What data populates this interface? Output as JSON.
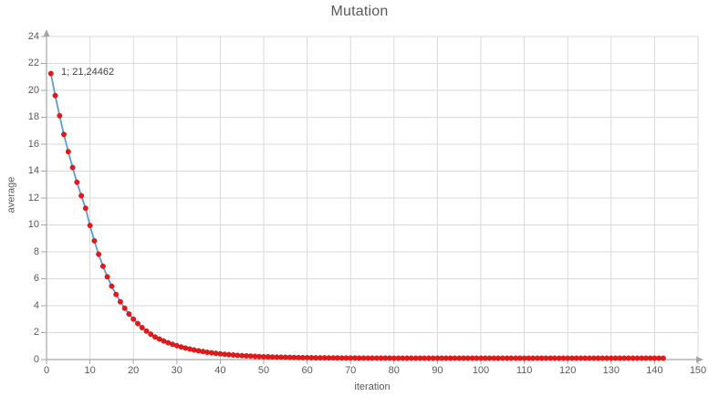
{
  "title": {
    "text": "Mutation"
  },
  "style": {
    "background": "#ffffff",
    "grid_color": "#d9d9d9",
    "axis_color": "#a6a6a6",
    "tick_label_color": "#595959",
    "title_color": "#595959",
    "data_label_color": "#404040"
  },
  "chart_data": {
    "type": "line",
    "title": "Mutation",
    "xlabel": "iteration",
    "ylabel": "average",
    "xlim": [
      0,
      150
    ],
    "ylim": [
      0,
      24
    ],
    "x_tick_step": 10,
    "y_tick_step": 2,
    "x_ticks": [
      0,
      10,
      20,
      30,
      40,
      50,
      60,
      70,
      80,
      90,
      100,
      110,
      120,
      130,
      140,
      150
    ],
    "y_ticks": [
      0,
      2,
      4,
      6,
      8,
      10,
      12,
      14,
      16,
      18,
      20,
      22,
      24
    ],
    "grid": true,
    "legend": "none",
    "line_color": "#5b9bd5",
    "marker_color": "#ed1515",
    "marker_edge_color": "#b01010",
    "annotations": [
      {
        "x": 1,
        "y": 21.24462,
        "text": "1; 21,24462"
      }
    ],
    "series": [
      {
        "name": "average",
        "x": [
          1,
          2,
          3,
          4,
          5,
          6,
          7,
          8,
          9,
          10,
          11,
          12,
          13,
          14,
          15,
          16,
          17,
          18,
          19,
          20,
          21,
          22,
          23,
          24,
          25,
          26,
          27,
          28,
          29,
          30,
          31,
          32,
          33,
          34,
          35,
          36,
          37,
          38,
          39,
          40,
          41,
          42,
          43,
          44,
          45,
          46,
          47,
          48,
          49,
          50,
          51,
          52,
          53,
          54,
          55,
          56,
          57,
          58,
          59,
          60,
          61,
          62,
          63,
          64,
          65,
          66,
          67,
          68,
          69,
          70,
          71,
          72,
          73,
          74,
          75,
          76,
          77,
          78,
          79,
          80,
          81,
          82,
          83,
          84,
          85,
          86,
          87,
          88,
          89,
          90,
          91,
          92,
          93,
          94,
          95,
          96,
          97,
          98,
          99,
          100,
          101,
          102,
          103,
          104,
          105,
          106,
          107,
          108,
          109,
          110,
          111,
          112,
          113,
          114,
          115,
          116,
          117,
          118,
          119,
          120,
          121,
          122,
          123,
          124,
          125,
          126,
          127,
          128,
          129,
          130,
          131,
          132,
          133,
          134,
          135,
          136,
          137,
          138,
          139,
          140,
          141,
          142
        ],
        "values": [
          21.24462,
          19.6164,
          18.1137,
          16.7266,
          15.4464,
          14.2647,
          13.174,
          12.1673,
          11.2381,
          9.9572,
          8.8236,
          7.8204,
          6.9325,
          6.1468,
          5.4514,
          4.836,
          4.2914,
          3.8094,
          3.3828,
          3.0053,
          2.6712,
          2.3755,
          2.1138,
          1.8822,
          1.6773,
          1.5196,
          1.3776,
          1.2498,
          1.1349,
          1.0314,
          0.9382,
          0.8544,
          0.779,
          0.7111,
          0.65,
          0.595,
          0.5455,
          0.5009,
          0.4608,
          0.4248,
          0.3923,
          0.363,
          0.3367,
          0.3131,
          0.2918,
          0.2726,
          0.2553,
          0.2398,
          0.2258,
          0.2132,
          0.2019,
          0.1917,
          0.1825,
          0.1743,
          0.1669,
          0.1602,
          0.1542,
          0.1487,
          0.1439,
          0.1395,
          0.1355,
          0.132,
          0.1288,
          0.1259,
          0.1233,
          0.121,
          0.1189,
          0.117,
          0.1153,
          0.1138,
          0.1124,
          0.1112,
          0.11,
          0.109,
          0.1081,
          0.1073,
          0.1066,
          0.1059,
          0.1053,
          0.1048,
          0.1043,
          0.1039,
          0.1035,
          0.1032,
          0.1028,
          0.1026,
          0.1023,
          0.1021,
          0.1019,
          0.1017,
          0.1015,
          0.1014,
          0.1012,
          0.1011,
          0.101,
          0.1009,
          0.1008,
          0.1007,
          0.1007,
          0.1006,
          0.1005,
          0.1005,
          0.1004,
          0.1004,
          0.1004,
          0.1003,
          0.1003,
          0.1003,
          0.1002,
          0.1002,
          0.1002,
          0.1002,
          0.1002,
          0.1001,
          0.1001,
          0.1001,
          0.1001,
          0.1001,
          0.1001,
          0.1001,
          0.1,
          0.1,
          0.1,
          0.1,
          0.1,
          0.1,
          0.1,
          0.1,
          0.1,
          0.1,
          0.1,
          0.1,
          0.1,
          0.1,
          0.1,
          0.1,
          0.1,
          0.1,
          0.1,
          0.1,
          0.1,
          0.1
        ]
      }
    ]
  }
}
